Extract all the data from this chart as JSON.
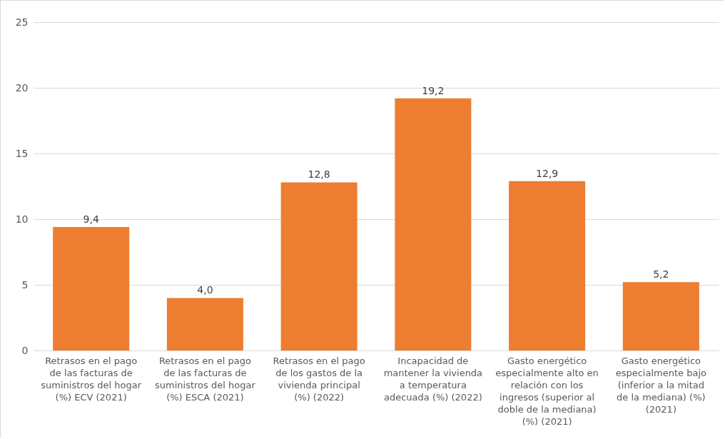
{
  "chart_data": {
    "type": "bar",
    "categories": [
      "Retrasos en el pago de las facturas de suministros del hogar (%) ECV (2021)",
      "Retrasos en el pago de las facturas de suministros del hogar (%) ESCA (2021)",
      "Retrasos en el pago de los gastos de la vivienda principal (%) (2022)",
      "Incapacidad de mantener la vivienda a temperatura adecuada (%) (2022)",
      "Gasto energético especialmente alto en relación con los ingresos (superior al doble de la mediana) (%) (2021)",
      "Gasto energético especialmente bajo (inferior a la mitad de la mediana) (%) (2021)"
    ],
    "values": [
      9.4,
      4.0,
      12.8,
      19.2,
      12.9,
      5.2
    ],
    "value_labels": [
      "9,4",
      "4,0",
      "12,8",
      "19,2",
      "12,9",
      "5,2"
    ],
    "color": "#ed7d31",
    "ylim": [
      0,
      25
    ],
    "yticks": [
      0,
      5,
      10,
      15,
      20,
      25
    ],
    "grid": "y"
  }
}
